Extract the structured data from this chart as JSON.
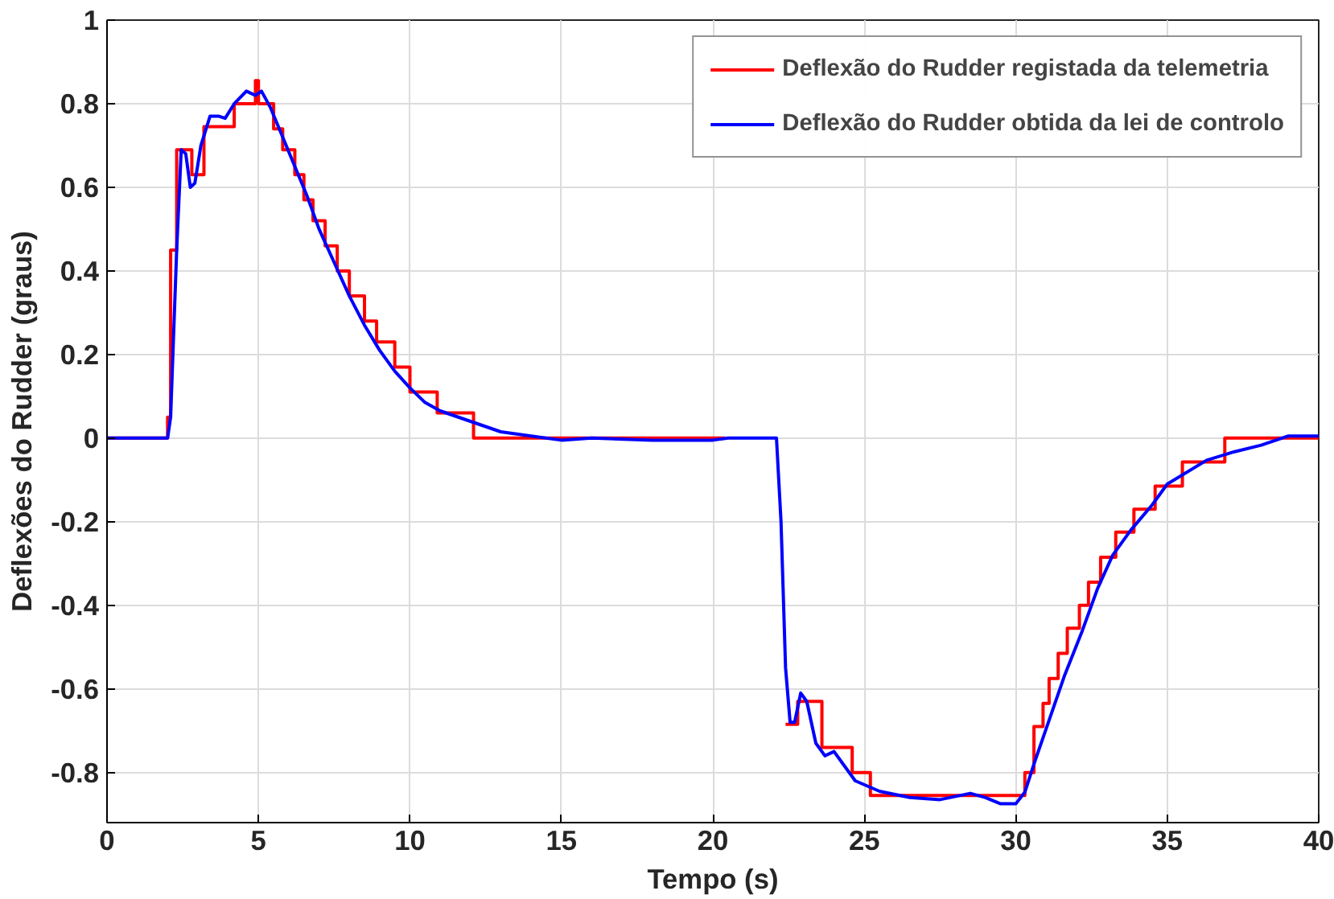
{
  "chart_data": {
    "type": "line",
    "xlabel": "Tempo (s)",
    "ylabel": "Deflexões do Rudder (graus)",
    "xlim": [
      0,
      40
    ],
    "ylim": [
      -0.92,
      1
    ],
    "xticks": [
      0,
      5,
      10,
      15,
      20,
      25,
      30,
      35,
      40
    ],
    "yticks": [
      -0.8,
      -0.6,
      -0.4,
      -0.2,
      0,
      0.2,
      0.4,
      0.6,
      0.8,
      1
    ],
    "grid": true,
    "legend": "top right",
    "line_style": "solid",
    "marker": "none",
    "series": [
      {
        "name": "Deflexão do Rudder registada da telemetria",
        "color": "#ff0000",
        "type": "step",
        "x": [
          0,
          2.0,
          2.1,
          2.3,
          2.45,
          2.8,
          3.2,
          4.2,
          4.9,
          5.0,
          5.5,
          5.8,
          6.2,
          6.5,
          6.8,
          7.2,
          7.6,
          8.0,
          8.5,
          8.9,
          9.5,
          10.0,
          10.9,
          12.1,
          20.4,
          20.5,
          22.4,
          22.8,
          23.6,
          24.6,
          25.2,
          30.3,
          30.6,
          30.9,
          31.1,
          31.4,
          31.7,
          32.1,
          32.4,
          32.8,
          33.3,
          33.9,
          34.6,
          35.5,
          36.9,
          40
        ],
        "values": [
          0,
          0.05,
          0.45,
          0.69,
          0.69,
          0.63,
          0.745,
          0.8,
          0.855,
          0.8,
          0.74,
          0.69,
          0.63,
          0.57,
          0.52,
          0.46,
          0.4,
          0.34,
          0.28,
          0.23,
          0.17,
          0.11,
          0.06,
          0,
          0,
          null,
          -0.685,
          -0.63,
          -0.74,
          -0.8,
          -0.855,
          -0.8,
          -0.69,
          -0.635,
          -0.575,
          -0.515,
          -0.455,
          -0.4,
          -0.345,
          -0.285,
          -0.225,
          -0.17,
          -0.115,
          -0.057,
          0,
          0
        ]
      },
      {
        "name": "Deflexão do Rudder obtida da lei de controlo",
        "color": "#0000ff",
        "x": [
          0,
          2.0,
          2.1,
          2.3,
          2.45,
          2.6,
          2.75,
          2.9,
          3.1,
          3.4,
          3.7,
          3.9,
          4.2,
          4.6,
          4.9,
          5.1,
          5.4,
          5.8,
          6.2,
          6.6,
          7.0,
          7.5,
          8.0,
          8.5,
          9.0,
          9.5,
          10,
          10.5,
          11,
          12,
          13,
          14,
          15,
          16,
          18,
          20,
          20.5,
          22.1,
          22.25,
          22.4,
          22.55,
          22.7,
          22.9,
          23.1,
          23.4,
          23.7,
          24,
          24.3,
          24.7,
          25.5,
          26.5,
          27.5,
          28.5,
          29,
          29.5,
          30,
          30.3,
          30.6,
          31.1,
          31.6,
          32.2,
          32.7,
          33.2,
          33.8,
          34.5,
          35.0,
          36.3,
          37.2,
          38.1,
          39,
          40
        ],
        "values": [
          0,
          0,
          0.05,
          0.45,
          0.69,
          0.68,
          0.6,
          0.61,
          0.7,
          0.77,
          0.77,
          0.765,
          0.8,
          0.83,
          0.82,
          0.83,
          0.79,
          0.72,
          0.65,
          0.58,
          0.5,
          0.42,
          0.34,
          0.27,
          0.21,
          0.16,
          0.12,
          0.085,
          0.065,
          0.04,
          0.015,
          0.005,
          -0.005,
          0,
          -0.005,
          -0.005,
          0,
          0,
          -0.2,
          -0.55,
          -0.68,
          -0.68,
          -0.61,
          -0.63,
          -0.73,
          -0.76,
          -0.75,
          -0.78,
          -0.82,
          -0.845,
          -0.86,
          -0.865,
          -0.85,
          -0.86,
          -0.875,
          -0.875,
          -0.847,
          -0.78,
          -0.675,
          -0.57,
          -0.46,
          -0.36,
          -0.28,
          -0.22,
          -0.16,
          -0.11,
          -0.053,
          -0.033,
          -0.017,
          0.005,
          0.005
        ]
      }
    ]
  }
}
